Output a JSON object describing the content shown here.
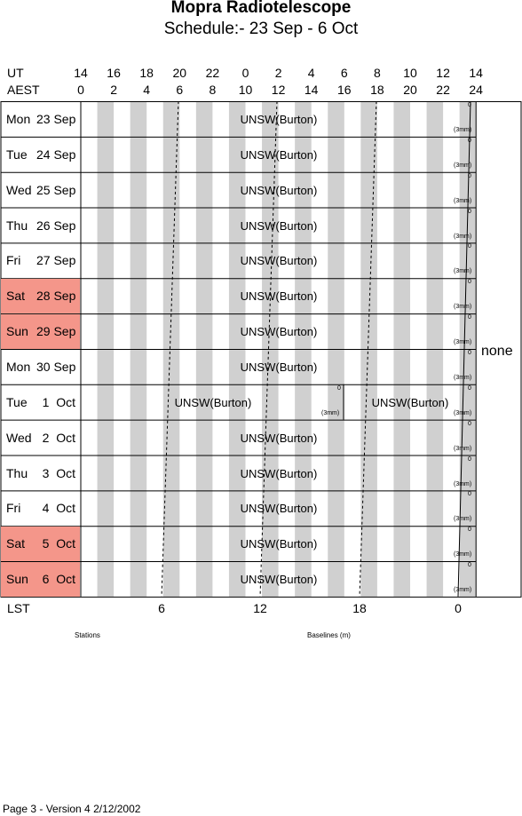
{
  "header": {
    "title": "Mopra Radiotelescope",
    "subtitle": "Schedule:- 23 Sep - 6  Oct"
  },
  "axes": {
    "ut_label": "UT",
    "aest_label": "AEST",
    "lst_label": "LST",
    "ut_ticks": [
      "14",
      "16",
      "18",
      "20",
      "22",
      "0",
      "2",
      "4",
      "6",
      "8",
      "10",
      "12",
      "14"
    ],
    "aest_ticks": [
      "0",
      "2",
      "4",
      "6",
      "8",
      "10",
      "12",
      "14",
      "16",
      "18",
      "20",
      "22",
      "24"
    ],
    "lst_ticks": [
      "6",
      "12",
      "18",
      "0"
    ]
  },
  "rows": [
    {
      "day": "Mon",
      "date": "23 Sep",
      "weekend": false,
      "project": "UNSW(Burton)"
    },
    {
      "day": "Tue",
      "date": "24 Sep",
      "weekend": false,
      "project": "UNSW(Burton)"
    },
    {
      "day": "Wed",
      "date": "25 Sep",
      "weekend": false,
      "project": "UNSW(Burton)"
    },
    {
      "day": "Thu",
      "date": "26 Sep",
      "weekend": false,
      "project": "UNSW(Burton)"
    },
    {
      "day": "Fri",
      "date": "27 Sep",
      "weekend": false,
      "project": "UNSW(Burton)"
    },
    {
      "day": "Sat",
      "date": "28 Sep",
      "weekend": true,
      "project": "UNSW(Burton)"
    },
    {
      "day": "Sun",
      "date": "29 Sep",
      "weekend": true,
      "project": "UNSW(Burton)"
    },
    {
      "day": "Mon",
      "date": "30 Sep",
      "weekend": false,
      "project": "UNSW(Burton)"
    },
    {
      "day": "Tue",
      "date": "1  Oct",
      "weekend": false,
      "project": "UNSW(Burton)",
      "project2": "UNSW(Burton)",
      "split": true
    },
    {
      "day": "Wed",
      "date": "2  Oct",
      "weekend": false,
      "project": "UNSW(Burton)"
    },
    {
      "day": "Thu",
      "date": "3  Oct",
      "weekend": false,
      "project": "UNSW(Burton)"
    },
    {
      "day": "Fri",
      "date": "4  Oct",
      "weekend": false,
      "project": "UNSW(Burton)"
    },
    {
      "day": "Sat",
      "date": "5  Oct",
      "weekend": true,
      "project": "UNSW(Burton)"
    },
    {
      "day": "Sun",
      "date": "6  Oct",
      "weekend": true,
      "project": "UNSW(Burton)"
    }
  ],
  "annotations": {
    "maintenance_label": "(3mm)",
    "zero_mark": "0"
  },
  "side": {
    "baselines_value": "none"
  },
  "captions": {
    "stations": "Stations",
    "baselines": "Baselines (m)"
  },
  "footer": "Page 3 - Version 4  2/12/2002"
}
